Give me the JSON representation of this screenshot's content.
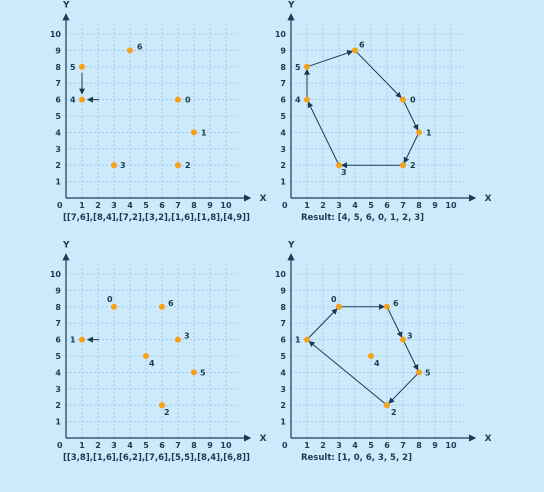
{
  "colors": {
    "background": "#cdeafc",
    "grid": "#8fb8d6",
    "axis": "#1d3a52",
    "point": "#f5a21b",
    "hull": "#1d3a52"
  },
  "axes": {
    "x_label": "X",
    "y_label": "Y",
    "origin_label": "0",
    "ticks": [
      1,
      2,
      3,
      4,
      5,
      6,
      7,
      8,
      9,
      10
    ]
  },
  "chart_data": [
    {
      "type": "scatter",
      "caption": "[[7,6],[8,4],[7,2],[3,2],[1,6],[1,8],[4,9]]",
      "xlim": [
        0,
        10
      ],
      "ylim": [
        0,
        10
      ],
      "grid": true,
      "points": [
        {
          "label": "0",
          "x": 7,
          "y": 6
        },
        {
          "label": "1",
          "x": 8,
          "y": 4
        },
        {
          "label": "2",
          "x": 7,
          "y": 2
        },
        {
          "label": "3",
          "x": 3,
          "y": 2
        },
        {
          "label": "4",
          "x": 1,
          "y": 6
        },
        {
          "label": "5",
          "x": 1,
          "y": 8
        },
        {
          "label": "6",
          "x": 4,
          "y": 9
        }
      ],
      "hull": [],
      "start_point": "4",
      "arrow_5_to_4": true
    },
    {
      "type": "scatter",
      "caption": "Result: [4, 5, 6, 0, 1, 2, 3]",
      "xlim": [
        0,
        10
      ],
      "ylim": [
        0,
        10
      ],
      "grid": true,
      "points": [
        {
          "label": "0",
          "x": 7,
          "y": 6
        },
        {
          "label": "1",
          "x": 8,
          "y": 4
        },
        {
          "label": "2",
          "x": 7,
          "y": 2
        },
        {
          "label": "3",
          "x": 3,
          "y": 2
        },
        {
          "label": "4",
          "x": 1,
          "y": 6
        },
        {
          "label": "5",
          "x": 1,
          "y": 8
        },
        {
          "label": "6",
          "x": 4,
          "y": 9
        }
      ],
      "hull": [
        "4",
        "5",
        "6",
        "0",
        "1",
        "2",
        "3"
      ]
    },
    {
      "type": "scatter",
      "caption": "[[3,8],[1,6],[6,2],[7,6],[5,5],[8,4],[6,8]]",
      "xlim": [
        0,
        10
      ],
      "ylim": [
        0,
        10
      ],
      "grid": true,
      "points": [
        {
          "label": "0",
          "x": 3,
          "y": 8
        },
        {
          "label": "1",
          "x": 1,
          "y": 6
        },
        {
          "label": "2",
          "x": 6,
          "y": 2
        },
        {
          "label": "3",
          "x": 7,
          "y": 6
        },
        {
          "label": "4",
          "x": 5,
          "y": 5
        },
        {
          "label": "5",
          "x": 8,
          "y": 4
        },
        {
          "label": "6",
          "x": 6,
          "y": 8
        }
      ],
      "hull": [],
      "start_point": "1"
    },
    {
      "type": "scatter",
      "caption": "Result: [1, 0, 6, 3, 5, 2]",
      "xlim": [
        0,
        10
      ],
      "ylim": [
        0,
        10
      ],
      "grid": true,
      "points": [
        {
          "label": "0",
          "x": 3,
          "y": 8
        },
        {
          "label": "1",
          "x": 1,
          "y": 6
        },
        {
          "label": "2",
          "x": 6,
          "y": 2
        },
        {
          "label": "3",
          "x": 7,
          "y": 6
        },
        {
          "label": "4",
          "x": 5,
          "y": 5
        },
        {
          "label": "5",
          "x": 8,
          "y": 4
        },
        {
          "label": "6",
          "x": 6,
          "y": 8
        }
      ],
      "hull": [
        "1",
        "0",
        "6",
        "3",
        "5",
        "2"
      ]
    }
  ]
}
